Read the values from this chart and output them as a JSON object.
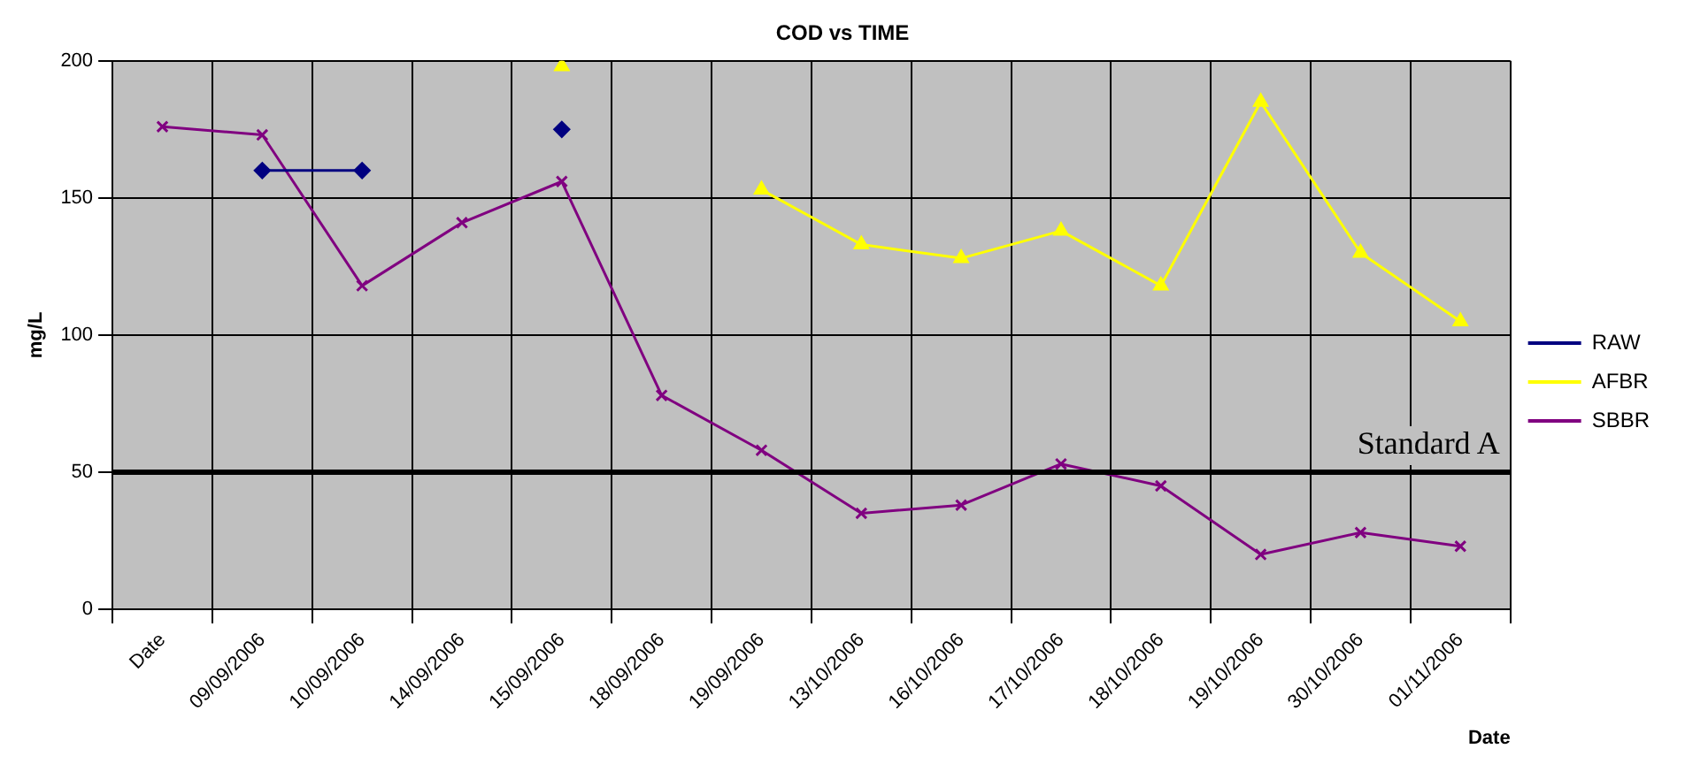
{
  "chart_data": {
    "type": "line",
    "title": "COD vs TIME",
    "xlabel": "Date",
    "ylabel": "mg/L",
    "categories": [
      "Date",
      "09/09/2006",
      "10/09/2006",
      "14/09/2006",
      "15/09/2006",
      "18/09/2006",
      "19/09/2006",
      "13/10/2006",
      "16/10/2006",
      "17/10/2006",
      "18/10/2006",
      "19/10/2006",
      "30/10/2006",
      "01/11/2006"
    ],
    "series": [
      {
        "name": "RAW",
        "color": "#000080",
        "marker": "diamond",
        "values": [
          null,
          160,
          160,
          null,
          175,
          null,
          null,
          null,
          null,
          null,
          null,
          null,
          null,
          null
        ]
      },
      {
        "name": "AFBR",
        "color": "#ffff00",
        "marker": "triangle",
        "values": [
          null,
          null,
          null,
          null,
          198,
          null,
          153,
          133,
          128,
          138,
          118,
          185,
          130,
          105
        ]
      },
      {
        "name": "SBBR",
        "color": "#800080",
        "marker": "cross",
        "values": [
          176,
          173,
          118,
          141,
          156,
          78,
          58,
          35,
          38,
          53,
          45,
          20,
          28,
          23
        ]
      }
    ],
    "ylim": [
      0,
      200
    ],
    "yticks": [
      0,
      50,
      100,
      150,
      200
    ],
    "grid": true,
    "legend": "right",
    "ref_lines": [
      {
        "axis": "y",
        "value": 50,
        "label": "Standard A",
        "color": "#000000"
      }
    ]
  }
}
